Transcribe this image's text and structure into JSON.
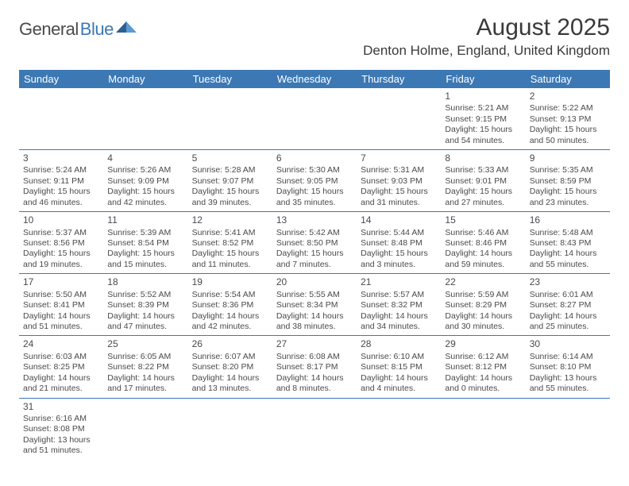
{
  "logo": {
    "word1": "General",
    "word2": "Blue"
  },
  "title": "August 2025",
  "location": "Denton Holme, England, United Kingdom",
  "colors": {
    "header_bg": "#3c78b4",
    "header_fg": "#ffffff",
    "border": "#3c78b4",
    "text": "#4a4a4a",
    "logo_gray": "#4a4a4a",
    "logo_blue": "#3c78b4",
    "background": "#ffffff"
  },
  "typography": {
    "title_fontsize": 30,
    "location_fontsize": 17,
    "dayheader_fontsize": 13,
    "daynum_fontsize": 12,
    "cell_fontsize": 10.5
  },
  "day_headers": [
    "Sunday",
    "Monday",
    "Tuesday",
    "Wednesday",
    "Thursday",
    "Friday",
    "Saturday"
  ],
  "weeks": [
    [
      null,
      null,
      null,
      null,
      null,
      {
        "n": "1",
        "sunrise": "5:21 AM",
        "sunset": "9:15 PM",
        "dl_h": "15",
        "dl_m": "54"
      },
      {
        "n": "2",
        "sunrise": "5:22 AM",
        "sunset": "9:13 PM",
        "dl_h": "15",
        "dl_m": "50"
      }
    ],
    [
      {
        "n": "3",
        "sunrise": "5:24 AM",
        "sunset": "9:11 PM",
        "dl_h": "15",
        "dl_m": "46"
      },
      {
        "n": "4",
        "sunrise": "5:26 AM",
        "sunset": "9:09 PM",
        "dl_h": "15",
        "dl_m": "42"
      },
      {
        "n": "5",
        "sunrise": "5:28 AM",
        "sunset": "9:07 PM",
        "dl_h": "15",
        "dl_m": "39"
      },
      {
        "n": "6",
        "sunrise": "5:30 AM",
        "sunset": "9:05 PM",
        "dl_h": "15",
        "dl_m": "35"
      },
      {
        "n": "7",
        "sunrise": "5:31 AM",
        "sunset": "9:03 PM",
        "dl_h": "15",
        "dl_m": "31"
      },
      {
        "n": "8",
        "sunrise": "5:33 AM",
        "sunset": "9:01 PM",
        "dl_h": "15",
        "dl_m": "27"
      },
      {
        "n": "9",
        "sunrise": "5:35 AM",
        "sunset": "8:59 PM",
        "dl_h": "15",
        "dl_m": "23"
      }
    ],
    [
      {
        "n": "10",
        "sunrise": "5:37 AM",
        "sunset": "8:56 PM",
        "dl_h": "15",
        "dl_m": "19"
      },
      {
        "n": "11",
        "sunrise": "5:39 AM",
        "sunset": "8:54 PM",
        "dl_h": "15",
        "dl_m": "15"
      },
      {
        "n": "12",
        "sunrise": "5:41 AM",
        "sunset": "8:52 PM",
        "dl_h": "15",
        "dl_m": "11"
      },
      {
        "n": "13",
        "sunrise": "5:42 AM",
        "sunset": "8:50 PM",
        "dl_h": "15",
        "dl_m": "7"
      },
      {
        "n": "14",
        "sunrise": "5:44 AM",
        "sunset": "8:48 PM",
        "dl_h": "15",
        "dl_m": "3"
      },
      {
        "n": "15",
        "sunrise": "5:46 AM",
        "sunset": "8:46 PM",
        "dl_h": "14",
        "dl_m": "59"
      },
      {
        "n": "16",
        "sunrise": "5:48 AM",
        "sunset": "8:43 PM",
        "dl_h": "14",
        "dl_m": "55"
      }
    ],
    [
      {
        "n": "17",
        "sunrise": "5:50 AM",
        "sunset": "8:41 PM",
        "dl_h": "14",
        "dl_m": "51"
      },
      {
        "n": "18",
        "sunrise": "5:52 AM",
        "sunset": "8:39 PM",
        "dl_h": "14",
        "dl_m": "47"
      },
      {
        "n": "19",
        "sunrise": "5:54 AM",
        "sunset": "8:36 PM",
        "dl_h": "14",
        "dl_m": "42"
      },
      {
        "n": "20",
        "sunrise": "5:55 AM",
        "sunset": "8:34 PM",
        "dl_h": "14",
        "dl_m": "38"
      },
      {
        "n": "21",
        "sunrise": "5:57 AM",
        "sunset": "8:32 PM",
        "dl_h": "14",
        "dl_m": "34"
      },
      {
        "n": "22",
        "sunrise": "5:59 AM",
        "sunset": "8:29 PM",
        "dl_h": "14",
        "dl_m": "30"
      },
      {
        "n": "23",
        "sunrise": "6:01 AM",
        "sunset": "8:27 PM",
        "dl_h": "14",
        "dl_m": "25"
      }
    ],
    [
      {
        "n": "24",
        "sunrise": "6:03 AM",
        "sunset": "8:25 PM",
        "dl_h": "14",
        "dl_m": "21"
      },
      {
        "n": "25",
        "sunrise": "6:05 AM",
        "sunset": "8:22 PM",
        "dl_h": "14",
        "dl_m": "17"
      },
      {
        "n": "26",
        "sunrise": "6:07 AM",
        "sunset": "8:20 PM",
        "dl_h": "14",
        "dl_m": "13"
      },
      {
        "n": "27",
        "sunrise": "6:08 AM",
        "sunset": "8:17 PM",
        "dl_h": "14",
        "dl_m": "8"
      },
      {
        "n": "28",
        "sunrise": "6:10 AM",
        "sunset": "8:15 PM",
        "dl_h": "14",
        "dl_m": "4"
      },
      {
        "n": "29",
        "sunrise": "6:12 AM",
        "sunset": "8:12 PM",
        "dl_h": "14",
        "dl_m": "0"
      },
      {
        "n": "30",
        "sunrise": "6:14 AM",
        "sunset": "8:10 PM",
        "dl_h": "13",
        "dl_m": "55"
      }
    ],
    [
      {
        "n": "31",
        "sunrise": "6:16 AM",
        "sunset": "8:08 PM",
        "dl_h": "13",
        "dl_m": "51"
      },
      null,
      null,
      null,
      null,
      null,
      null
    ]
  ]
}
